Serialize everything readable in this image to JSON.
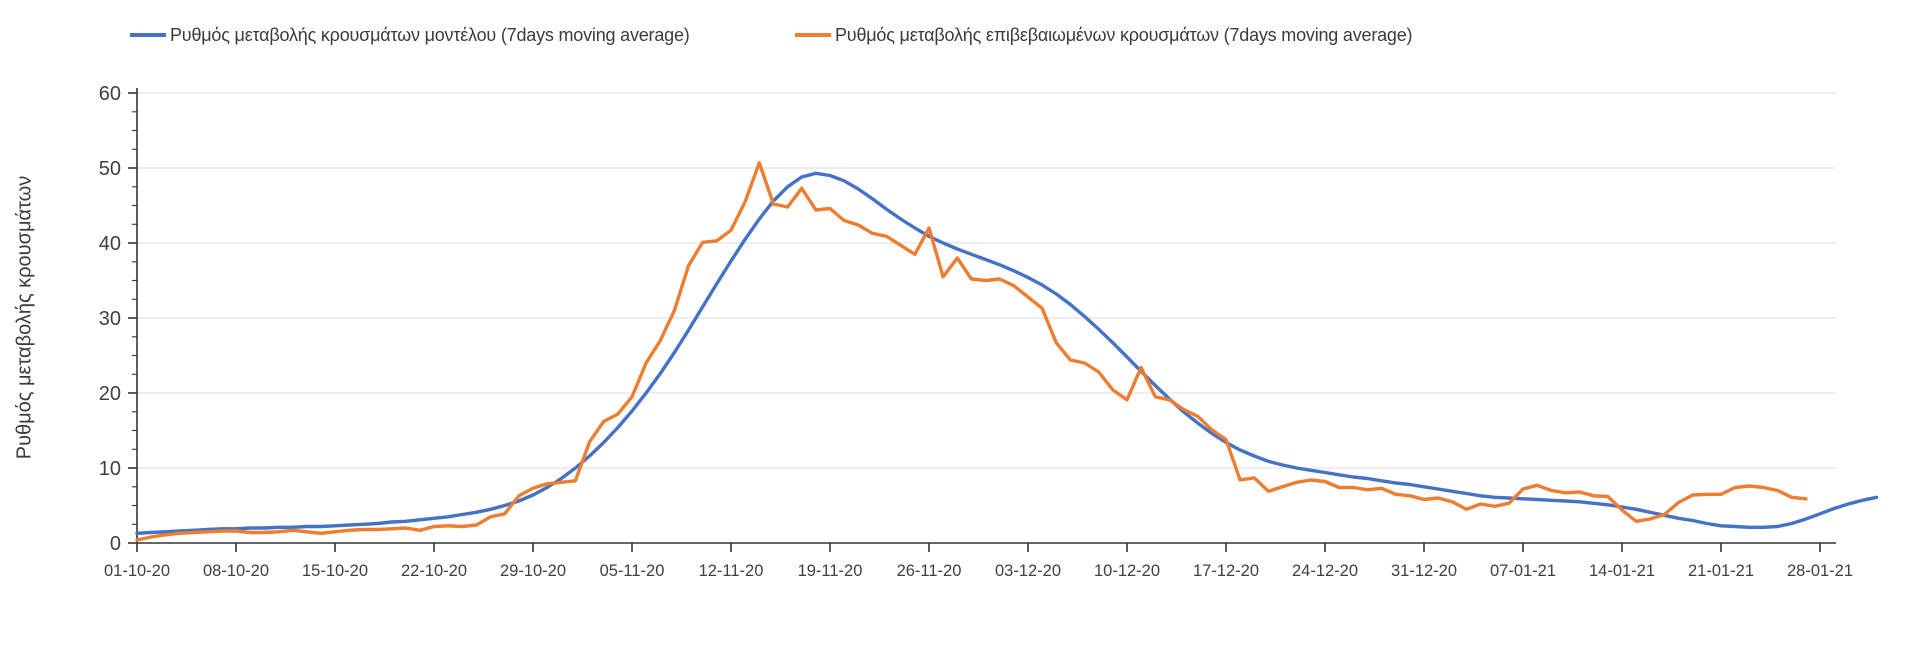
{
  "chart_data": {
    "type": "line",
    "title": "",
    "xlabel": "",
    "ylabel": "Ρυθμός μεταβολής κρουσμάτων",
    "ylim": [
      0,
      60
    ],
    "y_ticks": [
      0,
      10,
      20,
      30,
      40,
      50,
      60
    ],
    "y_minor_tick_step": 2.5,
    "grid": "horizontal gridlines at major y ticks",
    "legend_position": "top",
    "axis_color": "#333333",
    "grid_color": "#e4e4e4",
    "text_color": "#404040",
    "x_tick_interval_days": 7,
    "x_tick_labels": [
      "01-10-20",
      "08-10-20",
      "15-10-20",
      "22-10-20",
      "29-10-20",
      "05-11-20",
      "12-11-20",
      "19-11-20",
      "26-11-20",
      "03-12-20",
      "10-12-20",
      "17-12-20",
      "24-12-20",
      "31-12-20",
      "07-01-21",
      "14-01-21",
      "21-01-21",
      "28-01-21"
    ],
    "series": [
      {
        "name": "Ρυθμός μεταβολής κρουσμάτων μοντέλου (7days moving average)",
        "color": "#4472C4",
        "style": "smooth",
        "start_x_label": "01-10-20",
        "step_days": 1,
        "values": [
          1.3,
          1.4,
          1.5,
          1.6,
          1.7,
          1.8,
          1.9,
          1.9,
          2.0,
          2.0,
          2.1,
          2.1,
          2.2,
          2.2,
          2.3,
          2.4,
          2.5,
          2.6,
          2.8,
          2.9,
          3.1,
          3.3,
          3.5,
          3.8,
          4.1,
          4.5,
          5.0,
          5.6,
          6.4,
          7.4,
          8.6,
          10.0,
          11.6,
          13.4,
          15.4,
          17.6,
          20.0,
          22.6,
          25.4,
          28.4,
          31.5,
          34.6,
          37.6,
          40.5,
          43.2,
          45.6,
          47.5,
          48.8,
          49.3,
          49.0,
          48.3,
          47.2,
          45.9,
          44.5,
          43.2,
          42.0,
          40.9,
          40.0,
          39.2,
          38.5,
          37.8,
          37.1,
          36.3,
          35.4,
          34.4,
          33.2,
          31.8,
          30.2,
          28.5,
          26.7,
          24.8,
          22.9,
          21.0,
          19.2,
          17.5,
          16.0,
          14.6,
          13.4,
          12.4,
          11.6,
          10.9,
          10.4,
          10.0,
          9.7,
          9.4,
          9.1,
          8.8,
          8.6,
          8.3,
          8.0,
          7.8,
          7.5,
          7.2,
          6.9,
          6.6,
          6.3,
          6.1,
          6.0,
          5.9,
          5.8,
          5.7,
          5.6,
          5.5,
          5.3,
          5.1,
          4.8,
          4.5,
          4.1,
          3.7,
          3.3,
          3.0,
          2.6,
          2.3,
          2.2,
          2.1,
          2.1,
          2.2,
          2.6,
          3.2,
          3.9,
          4.6,
          5.2,
          5.7,
          6.1
        ]
      },
      {
        "name": "Ρυθμός μεταβολής επιβεβαιωμένων κρουσμάτων (7days moving average)",
        "color": "#ED7D31",
        "style": "jagged",
        "start_x_label": "01-10-20",
        "step_days": 1,
        "values": [
          0.4,
          0.8,
          1.1,
          1.3,
          1.4,
          1.5,
          1.6,
          1.6,
          1.4,
          1.4,
          1.5,
          1.7,
          1.5,
          1.3,
          1.5,
          1.7,
          1.8,
          1.8,
          1.9,
          2.0,
          1.7,
          2.2,
          2.3,
          2.2,
          2.4,
          3.5,
          3.9,
          6.3,
          7.3,
          7.9,
          8.1,
          8.3,
          13.5,
          16.2,
          17.2,
          19.5,
          24.0,
          27.0,
          31.0,
          37.0,
          40.1,
          40.3,
          41.7,
          45.5,
          50.7,
          45.2,
          44.8,
          47.3,
          44.4,
          44.6,
          43.0,
          42.4,
          41.3,
          40.9,
          39.7,
          38.5,
          42.0,
          35.5,
          38.0,
          35.2,
          35.0,
          35.2,
          34.3,
          32.8,
          31.3,
          26.7,
          24.4,
          24.0,
          22.8,
          20.4,
          19.1,
          23.4,
          19.5,
          19.1,
          17.8,
          16.9,
          15.1,
          13.8,
          8.4,
          8.7,
          6.9,
          7.5,
          8.1,
          8.4,
          8.2,
          7.4,
          7.4,
          7.1,
          7.3,
          6.5,
          6.3,
          5.8,
          6.0,
          5.5,
          4.5,
          5.2,
          4.9,
          5.3,
          7.2,
          7.7,
          7.0,
          6.7,
          6.8,
          6.3,
          6.2,
          4.4,
          2.9,
          3.2,
          3.8,
          5.4,
          6.4,
          6.5,
          6.5,
          7.4,
          7.6,
          7.4,
          7.0,
          6.1,
          5.9
        ]
      }
    ]
  },
  "legend": {
    "items": [
      {
        "label": "Ρυθμός μεταβολής κρουσμάτων μοντέλου (7days moving average)",
        "color": "#4472C4"
      },
      {
        "label": "Ρυθμός μεταβολής επιβεβαιωμένων κρουσμάτων (7days moving average)",
        "color": "#ED7D31"
      }
    ]
  }
}
